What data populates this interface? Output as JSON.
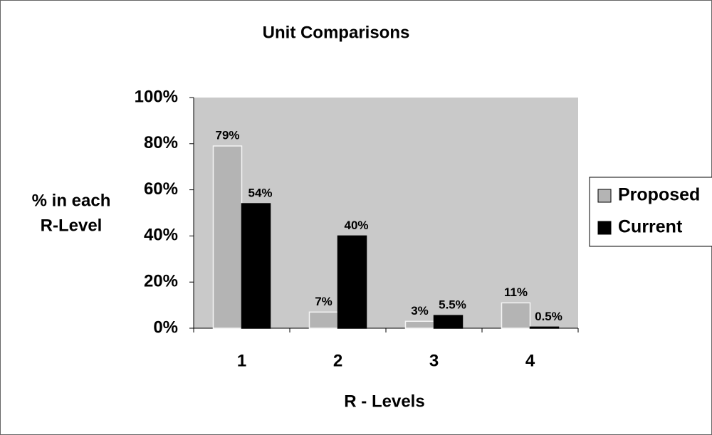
{
  "chart_data": {
    "type": "bar",
    "title": "Unit Comparisons",
    "ylabel": [
      "% in each",
      "R-Level"
    ],
    "xlabel": "R - Levels",
    "categories": [
      "1",
      "2",
      "3",
      "4"
    ],
    "series": [
      {
        "name": "Proposed",
        "color": "#b4b4b4",
        "values": [
          79,
          7,
          3,
          11
        ],
        "value_labels": [
          "79%",
          "7%",
          "3%",
          "11%"
        ]
      },
      {
        "name": "Current",
        "color": "#000000",
        "values": [
          54,
          40,
          5.5,
          0.5
        ],
        "value_labels": [
          "54%",
          "40%",
          "5.5%",
          "0.5%"
        ]
      }
    ],
    "ylim": [
      0,
      100
    ],
    "yticks": [
      {
        "value": 0,
        "label": "0%"
      },
      {
        "value": 20,
        "label": "20%"
      },
      {
        "value": 40,
        "label": "40%"
      },
      {
        "value": 60,
        "label": "60%"
      },
      {
        "value": 80,
        "label": "80%"
      },
      {
        "value": 100,
        "label": "100%"
      }
    ],
    "legend": "right"
  }
}
